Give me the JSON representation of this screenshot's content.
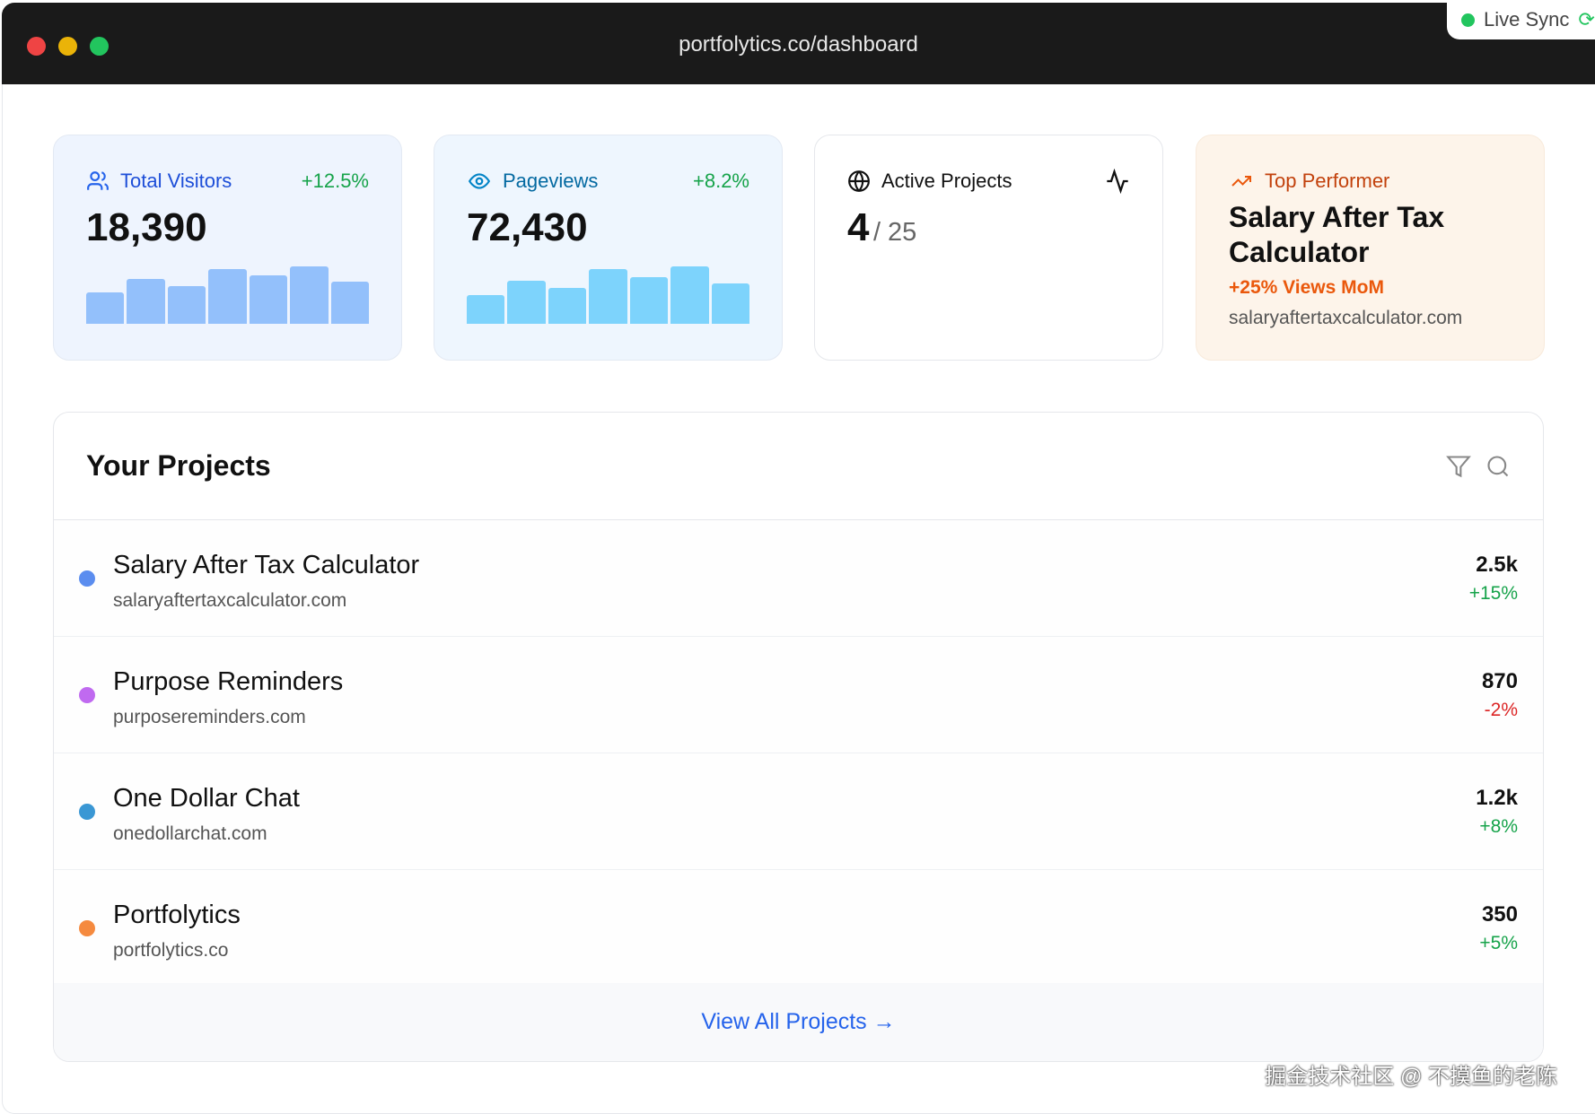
{
  "window": {
    "url": "portfolytics.co/dashboard",
    "live_sync": "Live Sync"
  },
  "stats": [
    {
      "label": "Total Visitors",
      "change": "+12.5%",
      "value": "18,390",
      "bars": [
        55,
        78,
        66,
        95,
        84,
        100,
        73
      ],
      "color": "#93c0fb"
    },
    {
      "label": "Pageviews",
      "change": "+8.2%",
      "value": "72,430",
      "bars": [
        50,
        75,
        62,
        95,
        82,
        100,
        70
      ],
      "color": "#7dd3fc"
    }
  ],
  "active": {
    "label": "Active Projects",
    "count": "4",
    "total": "/ 25"
  },
  "top": {
    "label": "Top Performer",
    "name": "Salary After Tax Calculator",
    "growth": "+25% Views MoM",
    "domain": "salaryaftertaxcalculator.com"
  },
  "projects": {
    "title": "Your Projects",
    "items": [
      {
        "name": "Salary After Tax Calculator",
        "domain": "salaryaftertaxcalculator.com",
        "value": "2.5k",
        "change": "+15%",
        "dot": "#5b8def",
        "up": true
      },
      {
        "name": "Purpose Reminders",
        "domain": "purposereminders.com",
        "value": "870",
        "change": "-2%",
        "dot": "#c06af0",
        "up": false
      },
      {
        "name": "One Dollar Chat",
        "domain": "onedollarchat.com",
        "value": "1.2k",
        "change": "+8%",
        "dot": "#3a97d4",
        "up": true
      },
      {
        "name": "Portfolytics",
        "domain": "portfolytics.co",
        "value": "350",
        "change": "+5%",
        "dot": "#f58a3f",
        "up": true
      }
    ],
    "view_all": "View All Projects →"
  },
  "watermark": "掘金技术社区 @ 不摸鱼的老陈"
}
